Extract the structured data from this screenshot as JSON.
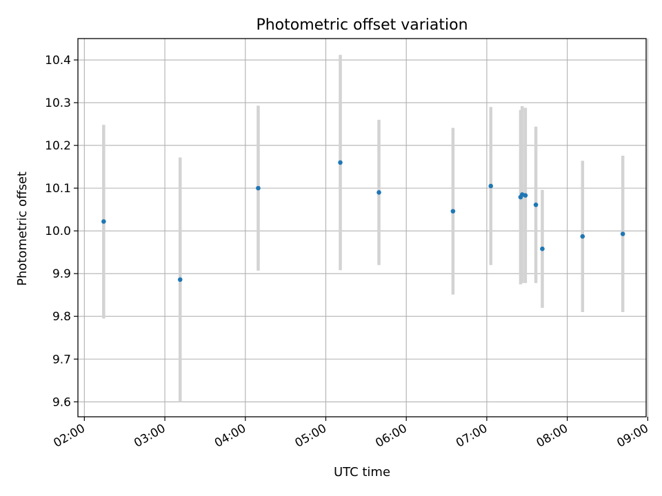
{
  "chart_data": {
    "type": "scatter",
    "title": "Photometric offset variation",
    "xlabel": "UTC time",
    "ylabel": "Photometric offset",
    "x_unit": "hours UTC",
    "xlim": [
      1.92,
      8.98
    ],
    "ylim": [
      9.565,
      10.45
    ],
    "grid": true,
    "legend": "none",
    "x_ticks": [
      {
        "value": 2,
        "label": "02:00"
      },
      {
        "value": 3,
        "label": "03:00"
      },
      {
        "value": 4,
        "label": "04:00"
      },
      {
        "value": 5,
        "label": "05:00"
      },
      {
        "value": 6,
        "label": "06:00"
      },
      {
        "value": 7,
        "label": "07:00"
      },
      {
        "value": 8,
        "label": "08:00"
      },
      {
        "value": 9,
        "label": "09:00"
      }
    ],
    "y_ticks": [
      {
        "value": 9.6,
        "label": "9.6"
      },
      {
        "value": 9.7,
        "label": "9.7"
      },
      {
        "value": 9.8,
        "label": "9.8"
      },
      {
        "value": 9.9,
        "label": "9.9"
      },
      {
        "value": 10.0,
        "label": "10.0"
      },
      {
        "value": 10.1,
        "label": "10.1"
      },
      {
        "value": 10.2,
        "label": "10.2"
      },
      {
        "value": 10.3,
        "label": "10.3"
      },
      {
        "value": 10.4,
        "label": "10.4"
      }
    ],
    "colors": {
      "point": "#1f77b4",
      "error_bar": "#d3d3d3",
      "grid": "#b0b0b0",
      "axes": "#000000"
    },
    "points": [
      {
        "x": 2.24,
        "y": 10.022,
        "ylow": 9.795,
        "yhigh": 10.248
      },
      {
        "x": 3.19,
        "y": 9.886,
        "ylow": 9.6,
        "yhigh": 10.172
      },
      {
        "x": 4.16,
        "y": 10.1,
        "ylow": 9.907,
        "yhigh": 10.293
      },
      {
        "x": 5.18,
        "y": 10.16,
        "ylow": 9.908,
        "yhigh": 10.412
      },
      {
        "x": 5.66,
        "y": 10.09,
        "ylow": 9.92,
        "yhigh": 10.26
      },
      {
        "x": 6.58,
        "y": 10.046,
        "ylow": 9.851,
        "yhigh": 10.241
      },
      {
        "x": 7.05,
        "y": 10.105,
        "ylow": 9.92,
        "yhigh": 10.29
      },
      {
        "x": 7.42,
        "y": 10.079,
        "ylow": 9.875,
        "yhigh": 10.283
      },
      {
        "x": 7.44,
        "y": 10.085,
        "ylow": 9.878,
        "yhigh": 10.292
      },
      {
        "x": 7.48,
        "y": 10.083,
        "ylow": 9.878,
        "yhigh": 10.288
      },
      {
        "x": 7.61,
        "y": 10.061,
        "ylow": 9.878,
        "yhigh": 10.244
      },
      {
        "x": 7.69,
        "y": 9.958,
        "ylow": 9.82,
        "yhigh": 10.096
      },
      {
        "x": 8.19,
        "y": 9.987,
        "ylow": 9.81,
        "yhigh": 10.164
      },
      {
        "x": 8.69,
        "y": 9.993,
        "ylow": 9.81,
        "yhigh": 10.176
      }
    ]
  }
}
